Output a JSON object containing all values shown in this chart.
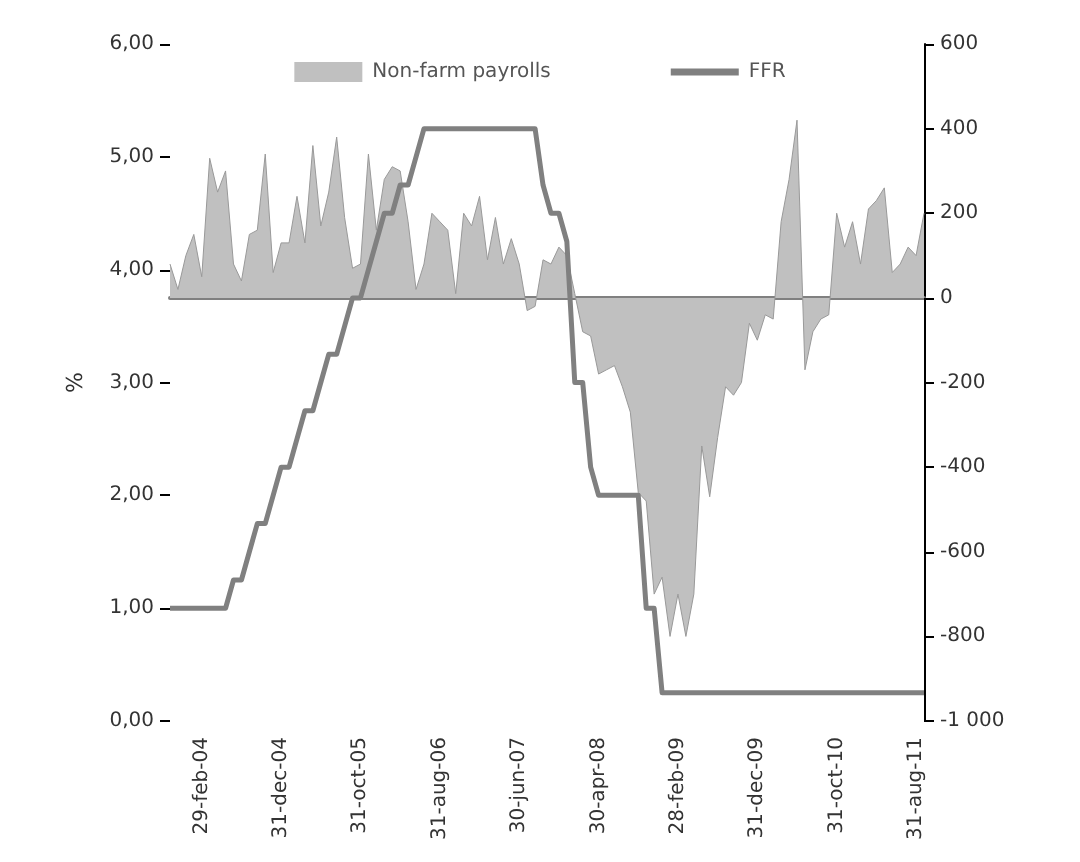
{
  "chart_data": {
    "type": "line",
    "legend": "top",
    "marker": "none",
    "ylabel": "%",
    "categories": [
      null,
      null,
      null,
      null,
      "29-feb-04",
      null,
      null,
      null,
      null,
      null,
      null,
      null,
      null,
      null,
      "31-dec-04",
      null,
      null,
      null,
      null,
      null,
      null,
      null,
      null,
      null,
      "31-oct-05",
      null,
      null,
      null,
      null,
      null,
      null,
      null,
      null,
      null,
      "31-aug-06",
      null,
      null,
      null,
      null,
      null,
      null,
      null,
      null,
      null,
      "30-jun-07",
      null,
      null,
      null,
      null,
      null,
      null,
      null,
      null,
      null,
      "30-apr-08",
      null,
      null,
      null,
      null,
      null,
      null,
      null,
      null,
      null,
      "28-feb-09",
      null,
      null,
      null,
      null,
      null,
      null,
      null,
      null,
      null,
      "31-dec-09",
      null,
      null,
      null,
      null,
      null,
      null,
      null,
      null,
      null,
      "31-oct-10",
      null,
      null,
      null,
      null,
      null,
      null,
      null,
      null,
      null,
      "31-aug-11",
      null
    ],
    "ylim": [
      0,
      6
    ],
    "yticks": [
      {
        "value": 0,
        "label": "0,00"
      },
      {
        "value": 1,
        "label": "1,00"
      },
      {
        "value": 2,
        "label": "2,00"
      },
      {
        "value": 3,
        "label": "3,00"
      },
      {
        "value": 4,
        "label": "4,00"
      },
      {
        "value": 5,
        "label": "5,00"
      },
      {
        "value": 6,
        "label": "6,00"
      }
    ],
    "y2lim": [
      -1000,
      600
    ],
    "y2ticks": [
      {
        "value": -1000,
        "label": "-1 000"
      },
      -800,
      -600,
      -400,
      -200,
      0,
      200,
      400,
      600
    ],
    "series": [
      {
        "name": "Non-farm payrolls",
        "type": "area",
        "axis": "y2",
        "color": "#c0c0c0",
        "values": [
          80,
          20,
          100,
          150,
          50,
          330,
          250,
          300,
          80,
          40,
          150,
          160,
          340,
          60,
          130,
          130,
          240,
          130,
          360,
          170,
          250,
          380,
          190,
          70,
          80,
          340,
          160,
          280,
          310,
          300,
          180,
          20,
          80,
          200,
          180,
          160,
          10,
          200,
          170,
          240,
          90,
          190,
          80,
          140,
          80,
          -30,
          -20,
          90,
          80,
          120,
          100,
          10,
          -80,
          -90,
          -180,
          -170,
          -160,
          -210,
          -270,
          -460,
          -480,
          -700,
          -660,
          -800,
          -700,
          -800,
          -700,
          -350,
          -470,
          -330,
          -210,
          -230,
          -200,
          -60,
          -100,
          -40,
          -50,
          180,
          280,
          420,
          -170,
          -80,
          -50,
          -40,
          200,
          120,
          180,
          80,
          210,
          230,
          260,
          60,
          80,
          120,
          100,
          200
        ]
      },
      {
        "name": "FFR",
        "axis": "y",
        "color": "#808080",
        "values": [
          1,
          1,
          1,
          1,
          1,
          1,
          1,
          1,
          1.25,
          1.25,
          1.5,
          1.75,
          1.75,
          2,
          2.25,
          2.25,
          2.5,
          2.75,
          2.75,
          3,
          3.25,
          3.25,
          3.5,
          3.75,
          3.75,
          4,
          4.25,
          4.5,
          4.5,
          4.75,
          4.75,
          5,
          5.25,
          5.25,
          5.25,
          5.25,
          5.25,
          5.25,
          5.25,
          5.25,
          5.25,
          5.25,
          5.25,
          5.25,
          5.25,
          5.25,
          5.25,
          4.75,
          4.5,
          4.5,
          4.25,
          3,
          3,
          2.25,
          2,
          2,
          2,
          2,
          2,
          2,
          1,
          1,
          0.25,
          0.25,
          0.25,
          0.25,
          0.25,
          0.25,
          0.25,
          0.25,
          0.25,
          0.25,
          0.25,
          0.25,
          0.25,
          0.25,
          0.25,
          0.25,
          0.25,
          0.25,
          0.25,
          0.25,
          0.25,
          0.25,
          0.25,
          0.25,
          0.25,
          0.25,
          0.25,
          0.25,
          0.25,
          0.25,
          0.25,
          0.25,
          0.25,
          0.25
        ]
      }
    ]
  }
}
